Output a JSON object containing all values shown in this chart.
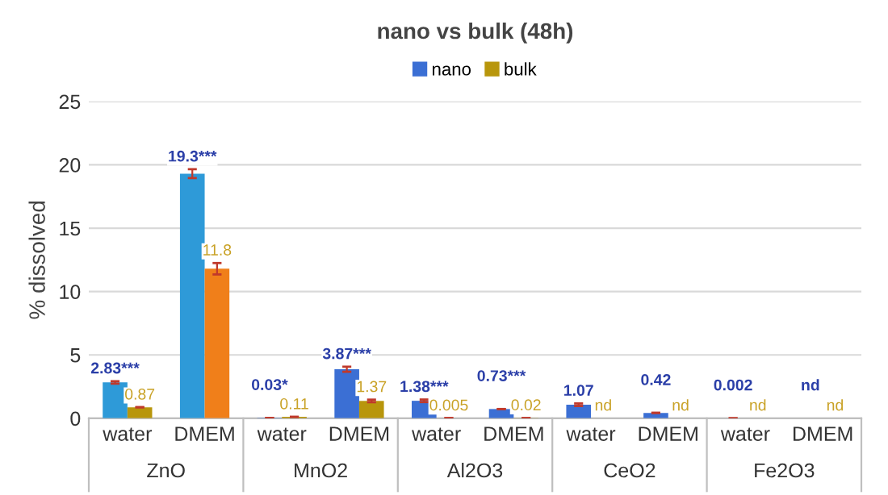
{
  "chart_data": {
    "type": "bar",
    "title": "nano vs bulk (48h)",
    "ylabel": "% dissolved",
    "categories": [
      "water",
      "DMEM",
      "water",
      "DMEM",
      "water",
      "DMEM",
      "water",
      "DMEM",
      "water",
      "DMEM"
    ],
    "series": [
      {
        "name": "nano",
        "color": "#3b6fd4",
        "colors": [
          "#2e9ad8",
          "#2e9ad8",
          "#3b6fd4",
          "#3b6fd4",
          "#3b6fd4",
          "#3b6fd4",
          "#3b6fd4",
          "#3b6fd4",
          "#3b6fd4",
          "#3b6fd4"
        ],
        "values": [
          2.83,
          19.3,
          0.03,
          3.87,
          1.38,
          0.73,
          1.07,
          0.42,
          0.002,
          null
        ],
        "errors": [
          0.1,
          0.35,
          null,
          0.2,
          0.1,
          null,
          0.1,
          null,
          null,
          null
        ],
        "value_labels": [
          "2.83***",
          "19.3***",
          "0.03*",
          "3.87***",
          "1.38***",
          "0.73***",
          "1.07",
          "0.42",
          "0.002",
          "nd"
        ]
      },
      {
        "name": "bulk",
        "color": "#b8960c",
        "colors": [
          "#b8960c",
          "#f07f1a",
          "#b8960c",
          "#b8960c",
          "#b8960c",
          "#b8960c",
          "#b8960c",
          "#b8960c",
          "#b8960c",
          "#b8960c"
        ],
        "values": [
          0.87,
          11.8,
          0.11,
          1.37,
          0.005,
          0.02,
          null,
          null,
          null,
          null
        ],
        "errors": [
          null,
          0.45,
          null,
          0.1,
          null,
          null,
          null,
          null,
          null,
          null
        ],
        "value_labels": [
          "0.87",
          "11.8",
          "0.11",
          "1.37",
          "0.005",
          "0.02",
          "nd",
          "nd",
          "nd",
          "nd"
        ]
      }
    ],
    "annotations": [
      "ZnO",
      "MnO2",
      "Al2O3",
      "CeO2",
      "Fe2O3"
    ],
    "ylim": [
      0,
      25
    ],
    "yticks": [
      0,
      5,
      10,
      15,
      20,
      25
    ],
    "grid": "y",
    "legend": "top"
  }
}
